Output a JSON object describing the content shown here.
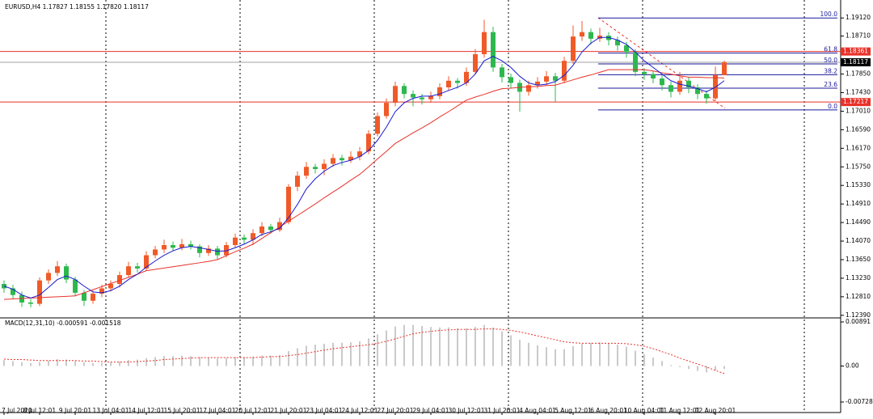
{
  "chart_data": {
    "type": "candlestick",
    "title": "EURUSD,H4  1.17827 1.18155 1.17820 1.18117",
    "up_color": "#f05a28",
    "down_color": "#2db84d",
    "ohlc": [
      [
        1.131,
        1.1318,
        1.129,
        1.13
      ],
      [
        1.13,
        1.1308,
        1.1277,
        1.1285
      ],
      [
        1.1285,
        1.1293,
        1.1258,
        1.1268
      ],
      [
        1.1268,
        1.1276,
        1.1257,
        1.1265
      ],
      [
        1.1265,
        1.1325,
        1.126,
        1.1318
      ],
      [
        1.1318,
        1.1343,
        1.131,
        1.1335
      ],
      [
        1.1335,
        1.1362,
        1.1328,
        1.135
      ],
      [
        1.135,
        1.1356,
        1.1312,
        1.132
      ],
      [
        1.132,
        1.1326,
        1.1282,
        1.129
      ],
      [
        1.129,
        1.1296,
        1.126,
        1.1272
      ],
      [
        1.1272,
        1.1295,
        1.1265,
        1.1288
      ],
      [
        1.1288,
        1.1308,
        1.128,
        1.13
      ],
      [
        1.13,
        1.1318,
        1.1293,
        1.131
      ],
      [
        1.131,
        1.1338,
        1.1302,
        1.133
      ],
      [
        1.133,
        1.136,
        1.1324,
        1.135
      ],
      [
        1.135,
        1.1358,
        1.1336,
        1.1345
      ],
      [
        1.1345,
        1.1384,
        1.134,
        1.1375
      ],
      [
        1.1375,
        1.1396,
        1.1368,
        1.1388
      ],
      [
        1.1388,
        1.141,
        1.138,
        1.1398
      ],
      [
        1.1398,
        1.1406,
        1.1384,
        1.1392
      ],
      [
        1.1392,
        1.1412,
        1.1386,
        1.14
      ],
      [
        1.14,
        1.1408,
        1.1388,
        1.1395
      ],
      [
        1.1395,
        1.14,
        1.137,
        1.138
      ],
      [
        1.138,
        1.1398,
        1.1374,
        1.139
      ],
      [
        1.139,
        1.1396,
        1.1366,
        1.1375
      ],
      [
        1.1375,
        1.1405,
        1.137,
        1.1398
      ],
      [
        1.1398,
        1.1424,
        1.1392,
        1.1415
      ],
      [
        1.1415,
        1.1422,
        1.14,
        1.141
      ],
      [
        1.141,
        1.1434,
        1.1398,
        1.1425
      ],
      [
        1.1425,
        1.145,
        1.1418,
        1.144
      ],
      [
        1.144,
        1.1446,
        1.1424,
        1.1432
      ],
      [
        1.1432,
        1.146,
        1.1428,
        1.145
      ],
      [
        1.145,
        1.1536,
        1.1445,
        1.153
      ],
      [
        1.153,
        1.1565,
        1.152,
        1.1555
      ],
      [
        1.1555,
        1.1586,
        1.1548,
        1.1575
      ],
      [
        1.1575,
        1.1582,
        1.156,
        1.157
      ],
      [
        1.157,
        1.1592,
        1.1556,
        1.1582
      ],
      [
        1.1582,
        1.1604,
        1.1575,
        1.1595
      ],
      [
        1.1595,
        1.1602,
        1.1578,
        1.159
      ],
      [
        1.159,
        1.161,
        1.1584,
        1.1598
      ],
      [
        1.1598,
        1.162,
        1.159,
        1.161
      ],
      [
        1.161,
        1.1658,
        1.1604,
        1.165
      ],
      [
        1.165,
        1.1698,
        1.1644,
        1.169
      ],
      [
        1.169,
        1.173,
        1.1684,
        1.172
      ],
      [
        1.172,
        1.1768,
        1.1712,
        1.1758
      ],
      [
        1.1758,
        1.1764,
        1.173,
        1.174
      ],
      [
        1.174,
        1.1748,
        1.1712,
        1.1732
      ],
      [
        1.1732,
        1.174,
        1.1716,
        1.1728
      ],
      [
        1.1728,
        1.1745,
        1.172,
        1.1735
      ],
      [
        1.1735,
        1.1764,
        1.1728,
        1.1755
      ],
      [
        1.1755,
        1.178,
        1.1748,
        1.177
      ],
      [
        1.177,
        1.1776,
        1.1752,
        1.1765
      ],
      [
        1.1765,
        1.18,
        1.1758,
        1.179
      ],
      [
        1.179,
        1.1842,
        1.1784,
        1.183
      ],
      [
        1.183,
        1.1908,
        1.1822,
        1.188
      ],
      [
        1.188,
        1.1892,
        1.179,
        1.18
      ],
      [
        1.18,
        1.1808,
        1.1766,
        1.1778
      ],
      [
        1.1778,
        1.1786,
        1.1752,
        1.1765
      ],
      [
        1.1765,
        1.1772,
        1.17,
        1.1745
      ],
      [
        1.1745,
        1.177,
        1.1736,
        1.176
      ],
      [
        1.176,
        1.1778,
        1.1752,
        1.1768
      ],
      [
        1.1768,
        1.1792,
        1.176,
        1.178
      ],
      [
        1.178,
        1.1788,
        1.1722,
        1.177
      ],
      [
        1.177,
        1.1824,
        1.1764,
        1.1815
      ],
      [
        1.1815,
        1.1895,
        1.1808,
        1.187
      ],
      [
        1.187,
        1.1905,
        1.186,
        1.188
      ],
      [
        1.188,
        1.1888,
        1.1852,
        1.1865
      ],
      [
        1.1865,
        1.189,
        1.1858,
        1.1872
      ],
      [
        1.1872,
        1.188,
        1.185,
        1.1862
      ],
      [
        1.1862,
        1.187,
        1.1838,
        1.185
      ],
      [
        1.185,
        1.1858,
        1.1822,
        1.1835
      ],
      [
        1.1835,
        1.1842,
        1.178,
        1.179
      ],
      [
        1.179,
        1.1798,
        1.1772,
        1.1785
      ],
      [
        1.1785,
        1.1792,
        1.1764,
        1.1775
      ],
      [
        1.1775,
        1.1782,
        1.1748,
        1.176
      ],
      [
        1.176,
        1.1768,
        1.1732,
        1.1745
      ],
      [
        1.1745,
        1.179,
        1.1738,
        1.177
      ],
      [
        1.177,
        1.1778,
        1.1742,
        1.1755
      ],
      [
        1.1755,
        1.1762,
        1.1728,
        1.174
      ],
      [
        1.174,
        1.1748,
        1.1718,
        1.173
      ],
      [
        1.173,
        1.1802,
        1.1724,
        1.1783
      ],
      [
        1.17827,
        1.18155,
        1.1782,
        1.18117
      ]
    ],
    "ylim": [
      1.1235,
      1.1949
    ],
    "yticks": [
      {
        "value": 1.1912,
        "label": "1.19120"
      },
      {
        "value": 1.1871,
        "label": "1.18710"
      },
      {
        "value": 1.1785,
        "label": "1.17850"
      },
      {
        "value": 1.1743,
        "label": "1.17430"
      },
      {
        "value": 1.1701,
        "label": "1.17010"
      },
      {
        "value": 1.1659,
        "label": "1.16590"
      },
      {
        "value": 1.1617,
        "label": "1.16170"
      },
      {
        "value": 1.1575,
        "label": "1.15750"
      },
      {
        "value": 1.1533,
        "label": "1.15330"
      },
      {
        "value": 1.1491,
        "label": "1.14910"
      },
      {
        "value": 1.1449,
        "label": "1.14490"
      },
      {
        "value": 1.1407,
        "label": "1.14070"
      },
      {
        "value": 1.1365,
        "label": "1.13650"
      },
      {
        "value": 1.1323,
        "label": "1.13230"
      },
      {
        "value": 1.1281,
        "label": "1.12810"
      },
      {
        "value": 1.1239,
        "label": "1.12390"
      }
    ],
    "x_labels": [
      "7 Jul 2020",
      "8 Jul 12:01",
      "9 Jul 20:01",
      "13 Jul 04:01",
      "14 Jul 12:01",
      "15 Jul 20:01",
      "17 Jul 04:01",
      "20 Jul 12:01",
      "21 Jul 20:01",
      "23 Jul 04:01",
      "24 Jul 12:01",
      "27 Jul 20:01",
      "29 Jul 04:01",
      "30 Jul 12:01",
      "31 Jul 20:01",
      "4 Aug 04:01",
      "5 Aug 12:01",
      "6 Aug 20:01",
      "10 Aug 04:01",
      "11 Aug 12:01",
      "12 Aug 20:01"
    ],
    "ma_fast": {
      "color": "#1a1ad0",
      "values": [
        1.1305,
        1.1298,
        1.1285,
        1.1278,
        1.1285,
        1.1302,
        1.132,
        1.1328,
        1.132,
        1.1305,
        1.1292,
        1.129,
        1.1295,
        1.1305,
        1.132,
        1.1332,
        1.1348,
        1.1362,
        1.1375,
        1.1385,
        1.1392,
        1.1395,
        1.1392,
        1.1388,
        1.1384,
        1.1385,
        1.1392,
        1.14,
        1.141,
        1.1422,
        1.1428,
        1.1436,
        1.146,
        1.149,
        1.1525,
        1.1548,
        1.1565,
        1.1578,
        1.1585,
        1.159,
        1.1598,
        1.1612,
        1.1635,
        1.1665,
        1.17,
        1.172,
        1.173,
        1.1735,
        1.1735,
        1.174,
        1.1748,
        1.1755,
        1.1765,
        1.1785,
        1.1815,
        1.1825,
        1.1815,
        1.18,
        1.178,
        1.1765,
        1.176,
        1.1762,
        1.1768,
        1.1782,
        1.1805,
        1.1835,
        1.1855,
        1.1868,
        1.1868,
        1.1862,
        1.1852,
        1.1835,
        1.1815,
        1.18,
        1.1785,
        1.177,
        1.1762,
        1.1758,
        1.1752,
        1.1745,
        1.1755,
        1.177
      ]
    },
    "ma_slow": {
      "color": "#e8322a",
      "values": [
        1.1275,
        1.1276,
        1.1277,
        1.1278,
        1.1279,
        1.128,
        1.1281,
        1.1282,
        1.1283,
        1.129,
        1.1297,
        1.1304,
        1.1311,
        1.1318,
        1.1325,
        1.1332,
        1.134,
        1.1343,
        1.1346,
        1.1349,
        1.1352,
        1.1355,
        1.1358,
        1.1361,
        1.1365,
        1.1374,
        1.1383,
        1.1391,
        1.14,
        1.1413,
        1.1426,
        1.1439,
        1.1452,
        1.1465,
        1.1478,
        1.1491,
        1.1505,
        1.1518,
        1.1531,
        1.1545,
        1.1558,
        1.1575,
        1.1593,
        1.161,
        1.1628,
        1.164,
        1.1652,
        1.1663,
        1.1675,
        1.1688,
        1.17,
        1.1713,
        1.1726,
        1.1733,
        1.1739,
        1.1746,
        1.1752,
        1.1753,
        1.1755,
        1.1756,
        1.1757,
        1.1759,
        1.176,
        1.1766,
        1.1772,
        1.1778,
        1.1783,
        1.1789,
        1.1795,
        1.1795,
        1.1795,
        1.1795,
        1.1795,
        1.1792,
        1.1788,
        1.1785,
        1.1781,
        1.1778,
        1.1778,
        1.1777,
        1.1777,
        1.1776
      ]
    },
    "price_lines": [
      {
        "value": 1.18361,
        "color": "#e8322a",
        "tag": "#e8322a"
      },
      {
        "value": 1.18117,
        "color": "#a0a0a0",
        "tag": "#000000"
      },
      {
        "value": 1.17217,
        "color": "#e8322a",
        "tag": "#e8322a"
      }
    ],
    "fib": {
      "color": "#1a1a9a",
      "high": 1.1912,
      "low": 1.1704,
      "levels": [
        {
          "value": 100,
          "label": "100.0"
        },
        61.8,
        {
          "value": 50,
          "label": "50.0"
        },
        38.2,
        23.6,
        {
          "value": 0,
          "label": "0.0"
        }
      ]
    },
    "macd": {
      "title": "MACD(12,31,10) -0.000591 -0.001518",
      "ylim": [
        -0.00728,
        0.00891
      ],
      "yticks": [
        0.00891,
        {
          "value": 0,
          "label": "0.00"
        },
        -0.00728
      ],
      "histogram": {
        "color": "#b8b8b8",
        "values": [
          0.0012,
          0.001,
          0.0008,
          0.0006,
          0.0008,
          0.0011,
          0.0014,
          0.0013,
          0.001,
          0.0007,
          0.0006,
          0.0006,
          0.0007,
          0.0009,
          0.0012,
          0.0013,
          0.0016,
          0.0018,
          0.002,
          0.002,
          0.0021,
          0.002,
          0.0018,
          0.0017,
          0.0015,
          0.0016,
          0.0018,
          0.0018,
          0.0019,
          0.0021,
          0.0021,
          0.0022,
          0.003,
          0.0036,
          0.0041,
          0.0043,
          0.0045,
          0.0047,
          0.0047,
          0.0048,
          0.005,
          0.0056,
          0.0064,
          0.0072,
          0.008,
          0.0083,
          0.0083,
          0.0081,
          0.0079,
          0.0078,
          0.0078,
          0.0076,
          0.0076,
          0.0079,
          0.0083,
          0.0078,
          0.007,
          0.0062,
          0.0053,
          0.0047,
          0.0042,
          0.0038,
          0.0034,
          0.0034,
          0.004,
          0.0045,
          0.0047,
          0.0048,
          0.0046,
          0.0043,
          0.0039,
          0.0031,
          0.0024,
          0.0017,
          0.001,
          0.0002,
          -0.0002,
          -0.0006,
          -0.001,
          -0.0013,
          -0.0009,
          -0.000591
        ]
      },
      "signal": {
        "color": "#e8322a",
        "values": [
          0.0014,
          0.0013,
          0.0013,
          0.0012,
          0.0011,
          0.0011,
          0.0011,
          0.0011,
          0.0011,
          0.001,
          0.001,
          0.0009,
          0.0008,
          0.0008,
          0.0008,
          0.0009,
          0.001,
          0.0011,
          0.0013,
          0.0014,
          0.0015,
          0.0016,
          0.0017,
          0.0017,
          0.0017,
          0.0017,
          0.0017,
          0.0017,
          0.0017,
          0.0018,
          0.0019,
          0.0019,
          0.0021,
          0.0023,
          0.0026,
          0.0029,
          0.0032,
          0.0035,
          0.0037,
          0.0039,
          0.0041,
          0.0043,
          0.0046,
          0.005,
          0.0055,
          0.006,
          0.0065,
          0.0068,
          0.007,
          0.0072,
          0.0073,
          0.0074,
          0.0074,
          0.0074,
          0.0075,
          0.0075,
          0.0074,
          0.0072,
          0.0069,
          0.0065,
          0.0061,
          0.0057,
          0.0053,
          0.0049,
          0.0047,
          0.0046,
          0.0046,
          0.0046,
          0.0046,
          0.0046,
          0.0045,
          0.0043,
          0.004,
          0.0035,
          0.0029,
          0.0023,
          0.0016,
          0.001,
          0.0004,
          -0.0002,
          -0.0009,
          -0.001518
        ]
      }
    }
  }
}
